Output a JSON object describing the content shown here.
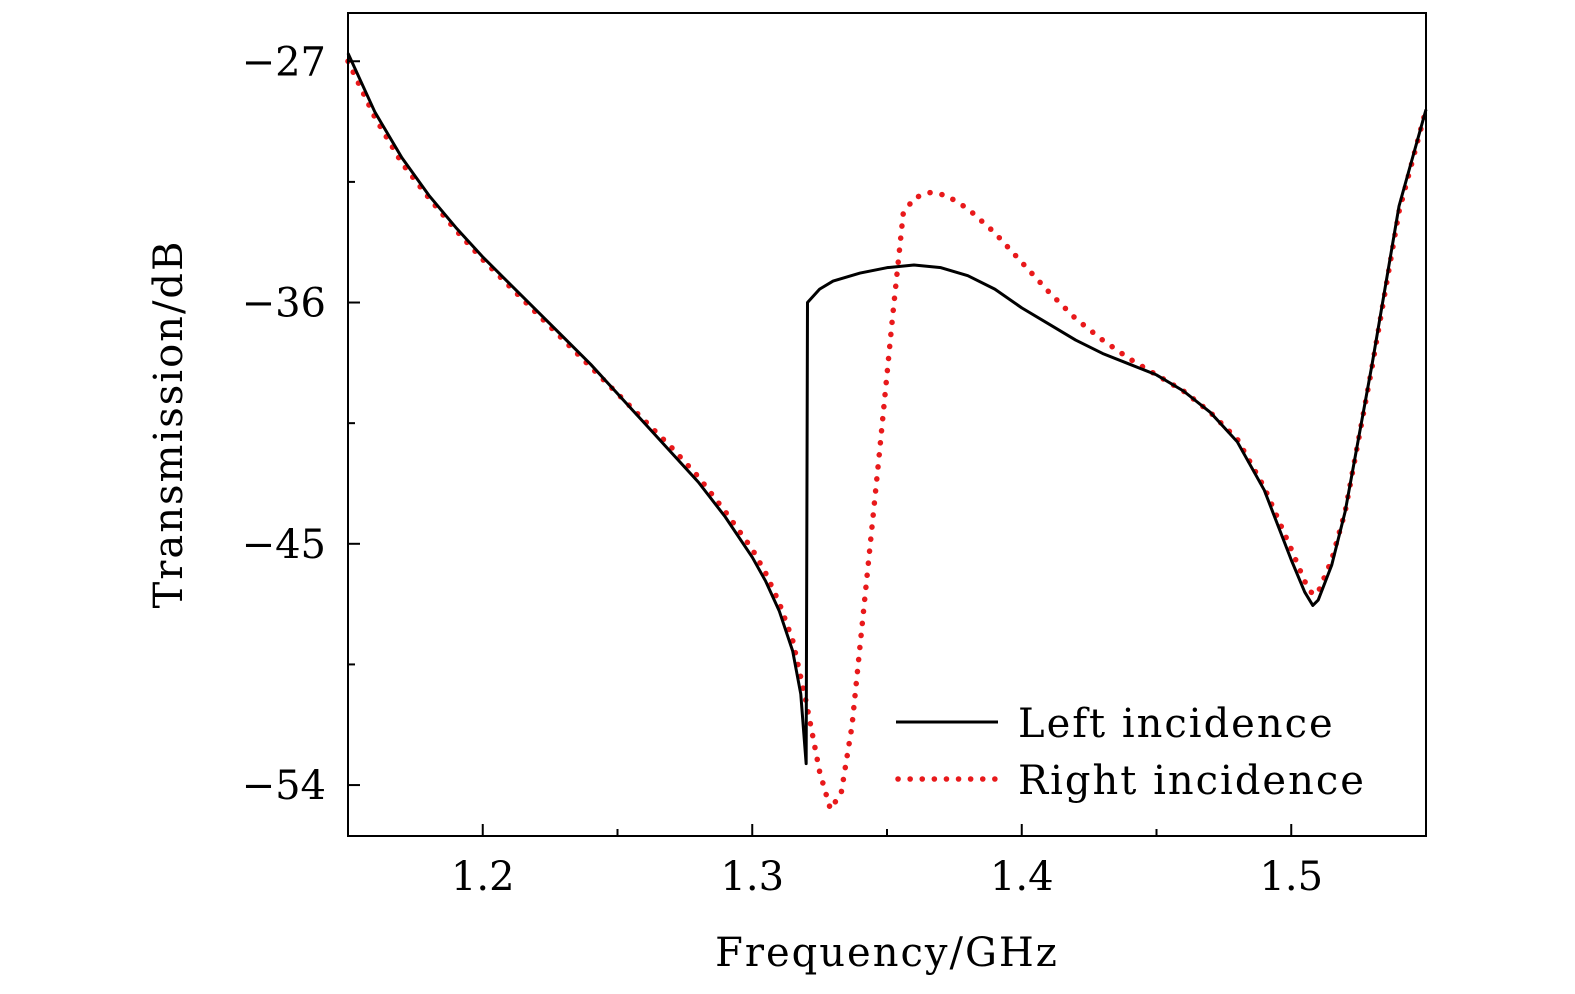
{
  "chart_data": {
    "type": "line",
    "title": "",
    "xlabel": "Frequency/GHz",
    "ylabel": "Transmission/dB",
    "xlim": [
      1.15,
      1.55
    ],
    "ylim": [
      -55.9,
      -25.2
    ],
    "xticks": [
      1.2,
      1.3,
      1.4,
      1.5
    ],
    "xtick_labels": [
      "1.2",
      "1.3",
      "1.4",
      "1.5"
    ],
    "xminor_ticks": [
      1.25,
      1.35,
      1.45
    ],
    "yticks": [
      -27,
      -36,
      -45,
      -54
    ],
    "ytick_labels": [
      "−27",
      "−36",
      "−45",
      "−54"
    ],
    "yminor_ticks": [
      -31.5,
      -40.5,
      -49.5
    ],
    "grid": false,
    "legend_position": "bottom-right",
    "series": [
      {
        "name": "Left incidence",
        "style": "solid",
        "color": "#000000",
        "points": [
          [
            1.15,
            -26.7
          ],
          [
            1.16,
            -28.9
          ],
          [
            1.17,
            -30.6
          ],
          [
            1.18,
            -32.0
          ],
          [
            1.19,
            -33.2
          ],
          [
            1.2,
            -34.3
          ],
          [
            1.21,
            -35.3
          ],
          [
            1.22,
            -36.3
          ],
          [
            1.23,
            -37.3
          ],
          [
            1.24,
            -38.3
          ],
          [
            1.25,
            -39.4
          ],
          [
            1.26,
            -40.5
          ],
          [
            1.27,
            -41.6
          ],
          [
            1.28,
            -42.7
          ],
          [
            1.29,
            -44.0
          ],
          [
            1.3,
            -45.5
          ],
          [
            1.305,
            -46.4
          ],
          [
            1.31,
            -47.5
          ],
          [
            1.315,
            -49.0
          ],
          [
            1.318,
            -50.6
          ],
          [
            1.32,
            -53.2
          ],
          [
            1.3205,
            -36.0
          ],
          [
            1.325,
            -35.5
          ],
          [
            1.33,
            -35.2
          ],
          [
            1.34,
            -34.9
          ],
          [
            1.35,
            -34.7
          ],
          [
            1.36,
            -34.6
          ],
          [
            1.37,
            -34.7
          ],
          [
            1.38,
            -35.0
          ],
          [
            1.39,
            -35.5
          ],
          [
            1.4,
            -36.2
          ],
          [
            1.41,
            -36.8
          ],
          [
            1.42,
            -37.4
          ],
          [
            1.43,
            -37.9
          ],
          [
            1.44,
            -38.3
          ],
          [
            1.45,
            -38.7
          ],
          [
            1.46,
            -39.3
          ],
          [
            1.47,
            -40.1
          ],
          [
            1.48,
            -41.2
          ],
          [
            1.49,
            -43.0
          ],
          [
            1.5,
            -45.6
          ],
          [
            1.505,
            -46.8
          ],
          [
            1.508,
            -47.3
          ],
          [
            1.51,
            -47.1
          ],
          [
            1.515,
            -45.8
          ],
          [
            1.52,
            -43.8
          ],
          [
            1.53,
            -38.3
          ],
          [
            1.54,
            -32.4
          ],
          [
            1.55,
            -28.8
          ]
        ]
      },
      {
        "name": "Right incidence",
        "style": "dotted",
        "color": "#e8191b",
        "points": [
          [
            1.15,
            -27.0
          ],
          [
            1.16,
            -29.1
          ],
          [
            1.17,
            -30.8
          ],
          [
            1.18,
            -32.1
          ],
          [
            1.19,
            -33.3
          ],
          [
            1.2,
            -34.4
          ],
          [
            1.21,
            -35.4
          ],
          [
            1.22,
            -36.4
          ],
          [
            1.23,
            -37.4
          ],
          [
            1.24,
            -38.4
          ],
          [
            1.25,
            -39.4
          ],
          [
            1.26,
            -40.4
          ],
          [
            1.27,
            -41.4
          ],
          [
            1.28,
            -42.5
          ],
          [
            1.29,
            -43.8
          ],
          [
            1.3,
            -45.2
          ],
          [
            1.305,
            -46.1
          ],
          [
            1.31,
            -47.2
          ],
          [
            1.315,
            -48.6
          ],
          [
            1.32,
            -50.9
          ],
          [
            1.325,
            -53.5
          ],
          [
            1.329,
            -54.9
          ],
          [
            1.333,
            -54.3
          ],
          [
            1.337,
            -51.8
          ],
          [
            1.342,
            -46.8
          ],
          [
            1.347,
            -41.8
          ],
          [
            1.352,
            -36.6
          ],
          [
            1.356,
            -32.7
          ],
          [
            1.36,
            -32.1
          ],
          [
            1.366,
            -31.9
          ],
          [
            1.372,
            -32.0
          ],
          [
            1.38,
            -32.5
          ],
          [
            1.39,
            -33.4
          ],
          [
            1.4,
            -34.5
          ],
          [
            1.41,
            -35.6
          ],
          [
            1.42,
            -36.6
          ],
          [
            1.43,
            -37.4
          ],
          [
            1.44,
            -38.1
          ],
          [
            1.45,
            -38.7
          ],
          [
            1.46,
            -39.3
          ],
          [
            1.47,
            -40.1
          ],
          [
            1.48,
            -41.1
          ],
          [
            1.49,
            -42.9
          ],
          [
            1.5,
            -45.2
          ],
          [
            1.505,
            -46.4
          ],
          [
            1.508,
            -46.9
          ],
          [
            1.51,
            -46.8
          ],
          [
            1.515,
            -45.6
          ],
          [
            1.52,
            -43.8
          ],
          [
            1.53,
            -38.4
          ],
          [
            1.54,
            -32.6
          ],
          [
            1.55,
            -28.8
          ]
        ]
      }
    ]
  }
}
